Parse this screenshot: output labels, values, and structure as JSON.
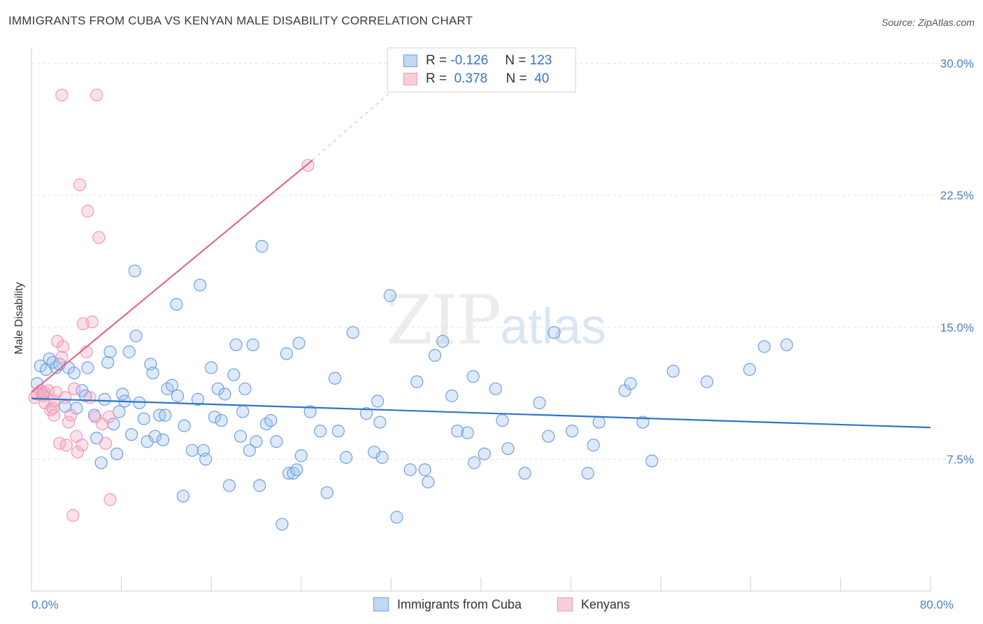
{
  "title": "IMMIGRANTS FROM CUBA VS KENYAN MALE DISABILITY CORRELATION CHART",
  "source": "Source: ZipAtlas.com",
  "watermark": {
    "zip": "ZIP",
    "atlas": "atlas"
  },
  "legend": {
    "r_label": "R =",
    "n_label": "N =",
    "rows": [
      {
        "r": "-0.126",
        "n": "123"
      },
      {
        "r": "0.378",
        "n": "40"
      }
    ]
  },
  "bottom_legend": [
    "Immigrants from Cuba",
    "Kenyans"
  ],
  "chart_data": {
    "type": "scatter",
    "ylabel": "Male Disability",
    "xlim": [
      0,
      80
    ],
    "ylim": [
      0,
      30.5
    ],
    "y_ticks": [
      {
        "value": 7.5,
        "label": "7.5%"
      },
      {
        "value": 15.0,
        "label": "15.0%"
      },
      {
        "value": 22.5,
        "label": "22.5%"
      },
      {
        "value": 30.0,
        "label": "30.0%"
      }
    ],
    "x_tick_labels": [
      {
        "value": 0,
        "label": "0.0%"
      },
      {
        "value": 80,
        "label": "80.0%"
      }
    ],
    "x_minor_ticks": [
      8,
      16,
      24,
      32,
      40,
      48,
      56,
      64,
      72,
      80
    ],
    "colors": {
      "cuba": "#6fa0e0",
      "cuba_line": "#2f74c8",
      "kenya": "#f09ab7",
      "kenya_line": "#e06890"
    },
    "series": [
      {
        "name": "Immigrants from Cuba",
        "points": [
          [
            0.5,
            11.8
          ],
          [
            0.8,
            12.8
          ],
          [
            1.0,
            11.2
          ],
          [
            1.3,
            12.6
          ],
          [
            1.6,
            13.2
          ],
          [
            1.9,
            13.0
          ],
          [
            2.2,
            12.7
          ],
          [
            2.5,
            12.9
          ],
          [
            3.0,
            10.5
          ],
          [
            3.3,
            12.7
          ],
          [
            3.8,
            12.4
          ],
          [
            4.0,
            10.4
          ],
          [
            4.5,
            11.4
          ],
          [
            4.8,
            11.1
          ],
          [
            5.0,
            12.7
          ],
          [
            5.6,
            10.0
          ],
          [
            5.8,
            8.7
          ],
          [
            6.2,
            7.3
          ],
          [
            6.5,
            10.9
          ],
          [
            6.8,
            13.0
          ],
          [
            7.0,
            13.6
          ],
          [
            7.3,
            9.5
          ],
          [
            7.6,
            7.8
          ],
          [
            7.8,
            10.2
          ],
          [
            8.1,
            11.2
          ],
          [
            8.3,
            10.8
          ],
          [
            8.7,
            13.6
          ],
          [
            8.9,
            8.9
          ],
          [
            9.2,
            18.2
          ],
          [
            9.3,
            14.5
          ],
          [
            9.6,
            10.7
          ],
          [
            10.0,
            9.8
          ],
          [
            10.3,
            8.5
          ],
          [
            10.6,
            12.9
          ],
          [
            10.8,
            12.4
          ],
          [
            11.0,
            8.8
          ],
          [
            11.4,
            10.0
          ],
          [
            11.7,
            8.6
          ],
          [
            11.9,
            10.0
          ],
          [
            12.1,
            11.5
          ],
          [
            12.5,
            11.7
          ],
          [
            12.9,
            16.3
          ],
          [
            13.0,
            11.1
          ],
          [
            13.5,
            5.4
          ],
          [
            13.6,
            9.4
          ],
          [
            14.3,
            8.0
          ],
          [
            14.8,
            10.9
          ],
          [
            15.0,
            17.4
          ],
          [
            15.3,
            8.0
          ],
          [
            15.5,
            7.5
          ],
          [
            16.0,
            12.7
          ],
          [
            16.3,
            9.9
          ],
          [
            16.6,
            11.5
          ],
          [
            16.9,
            9.7
          ],
          [
            17.2,
            11.2
          ],
          [
            17.6,
            6.0
          ],
          [
            18.0,
            12.3
          ],
          [
            18.2,
            14.0
          ],
          [
            18.6,
            8.8
          ],
          [
            18.8,
            10.2
          ],
          [
            19.0,
            11.5
          ],
          [
            19.4,
            8.0
          ],
          [
            19.7,
            14.0
          ],
          [
            20.0,
            8.5
          ],
          [
            20.3,
            6.0
          ],
          [
            20.5,
            19.6
          ],
          [
            20.9,
            9.5
          ],
          [
            21.3,
            9.7
          ],
          [
            21.8,
            8.5
          ],
          [
            22.3,
            3.8
          ],
          [
            22.7,
            13.5
          ],
          [
            22.9,
            6.7
          ],
          [
            23.3,
            6.7
          ],
          [
            23.6,
            6.9
          ],
          [
            23.8,
            14.1
          ],
          [
            24.0,
            7.7
          ],
          [
            24.8,
            10.2
          ],
          [
            25.7,
            9.1
          ],
          [
            26.3,
            5.6
          ],
          [
            27.0,
            12.1
          ],
          [
            27.3,
            9.1
          ],
          [
            28.0,
            7.6
          ],
          [
            28.6,
            14.7
          ],
          [
            29.8,
            10.1
          ],
          [
            30.5,
            7.9
          ],
          [
            30.8,
            10.8
          ],
          [
            31.0,
            9.6
          ],
          [
            31.2,
            7.6
          ],
          [
            31.9,
            16.8
          ],
          [
            32.5,
            4.2
          ],
          [
            33.7,
            6.9
          ],
          [
            34.3,
            11.9
          ],
          [
            35.0,
            6.9
          ],
          [
            35.3,
            6.2
          ],
          [
            35.9,
            13.4
          ],
          [
            36.6,
            14.2
          ],
          [
            37.4,
            11.1
          ],
          [
            37.9,
            9.1
          ],
          [
            38.8,
            9.0
          ],
          [
            39.3,
            12.2
          ],
          [
            39.4,
            7.3
          ],
          [
            40.3,
            7.8
          ],
          [
            41.3,
            11.5
          ],
          [
            41.9,
            9.7
          ],
          [
            42.4,
            8.1
          ],
          [
            43.9,
            6.7
          ],
          [
            45.2,
            10.7
          ],
          [
            46.0,
            8.8
          ],
          [
            46.5,
            14.7
          ],
          [
            48.1,
            9.1
          ],
          [
            49.5,
            6.7
          ],
          [
            50.0,
            8.3
          ],
          [
            50.5,
            9.6
          ],
          [
            52.8,
            11.4
          ],
          [
            53.3,
            11.8
          ],
          [
            54.4,
            9.6
          ],
          [
            55.2,
            7.4
          ],
          [
            57.1,
            12.5
          ],
          [
            60.1,
            11.9
          ],
          [
            63.9,
            12.6
          ],
          [
            65.2,
            13.9
          ],
          [
            67.2,
            14.0
          ]
        ],
        "trend": {
          "x": [
            0,
            80
          ],
          "y": [
            10.95,
            9.3
          ]
        }
      },
      {
        "name": "Kenyans",
        "points": [
          [
            0.3,
            11.0
          ],
          [
            0.5,
            11.2
          ],
          [
            0.8,
            11.4
          ],
          [
            1.0,
            11.1
          ],
          [
            1.2,
            10.7
          ],
          [
            1.5,
            11.4
          ],
          [
            1.7,
            10.3
          ],
          [
            1.9,
            10.4
          ],
          [
            2.0,
            10.0
          ],
          [
            2.2,
            11.3
          ],
          [
            2.3,
            14.2
          ],
          [
            2.5,
            8.4
          ],
          [
            2.7,
            13.3
          ],
          [
            2.8,
            13.9
          ],
          [
            3.0,
            11.0
          ],
          [
            3.1,
            8.3
          ],
          [
            3.3,
            9.6
          ],
          [
            3.5,
            10.0
          ],
          [
            3.7,
            4.3
          ],
          [
            3.8,
            11.5
          ],
          [
            4.0,
            8.8
          ],
          [
            4.1,
            7.9
          ],
          [
            4.3,
            23.1
          ],
          [
            4.5,
            8.3
          ],
          [
            4.6,
            15.2
          ],
          [
            4.9,
            13.6
          ],
          [
            5.0,
            21.6
          ],
          [
            5.2,
            11.0
          ],
          [
            5.4,
            15.3
          ],
          [
            5.7,
            9.9
          ],
          [
            5.8,
            28.2
          ],
          [
            6.0,
            20.1
          ],
          [
            6.3,
            9.5
          ],
          [
            6.6,
            8.4
          ],
          [
            6.9,
            9.9
          ],
          [
            7.0,
            5.2
          ],
          [
            2.7,
            28.2
          ],
          [
            24.6,
            24.2
          ],
          [
            1.1,
            11.3
          ],
          [
            2.0,
            10.8
          ]
        ],
        "trend": {
          "x": [
            0,
            25
          ],
          "y": [
            11.3,
            24.5
          ]
        },
        "trend_dashed": {
          "x": [
            25,
            32
          ],
          "y": [
            24.5,
            28.4
          ]
        }
      }
    ]
  }
}
